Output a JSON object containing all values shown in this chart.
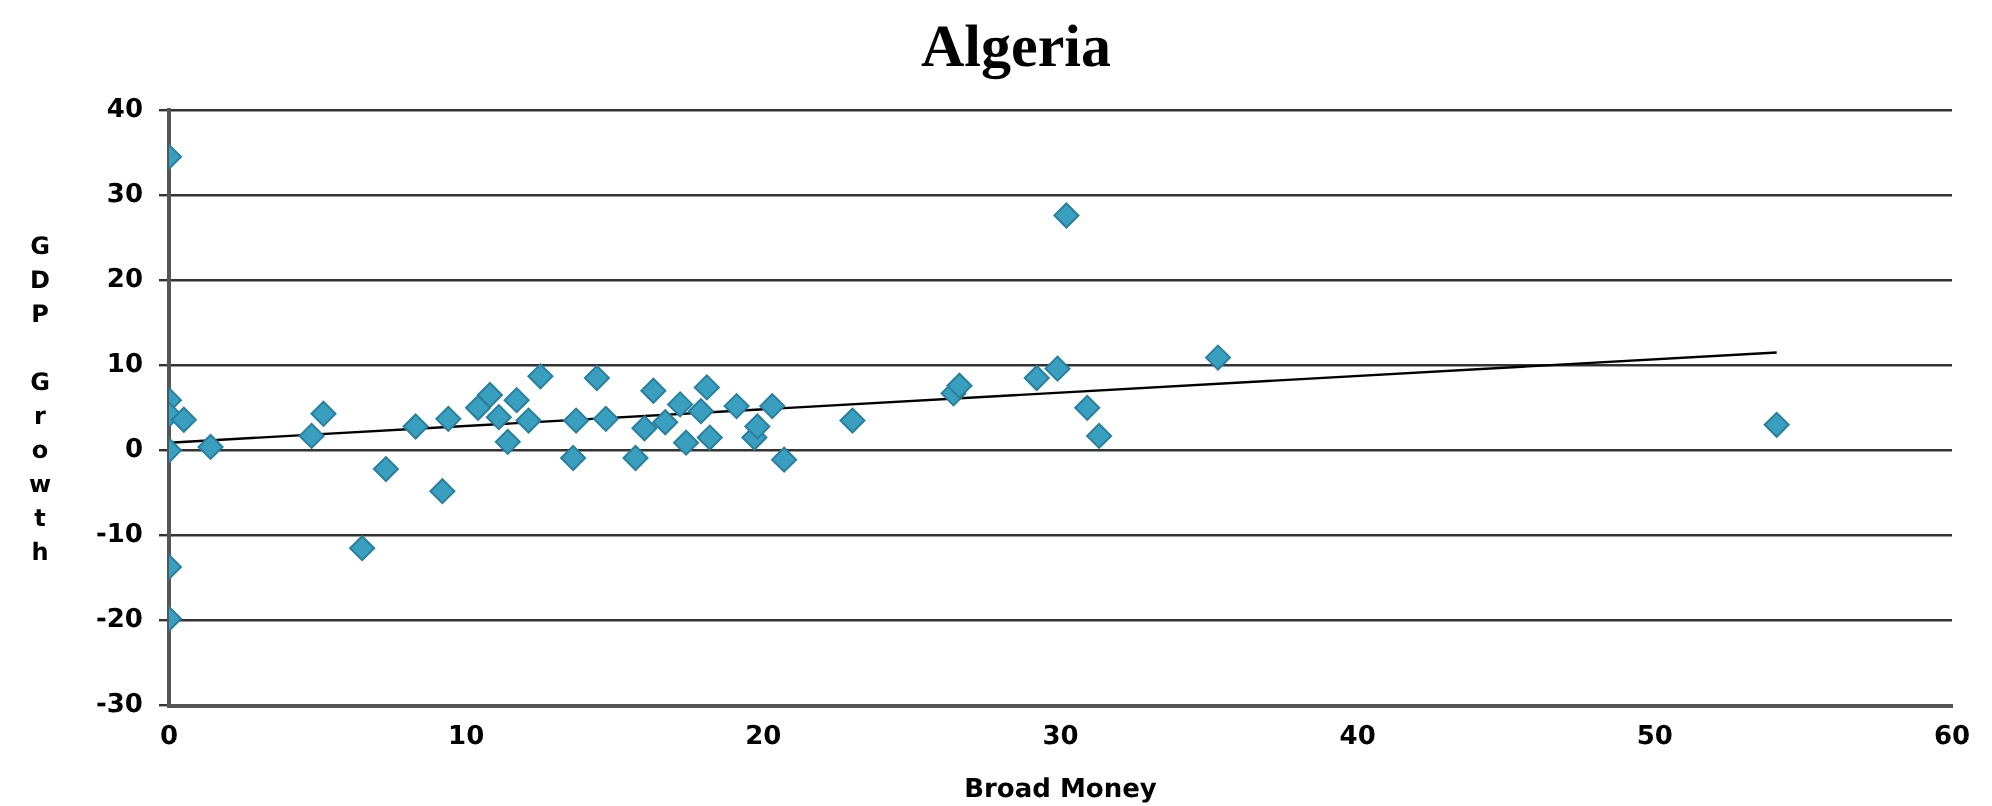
{
  "chart_data": {
    "type": "scatter",
    "title": "Algeria",
    "xlabel": "Broad Money",
    "ylabel": "GDP Growth",
    "marker": "diamond",
    "legend": false,
    "grid": "y",
    "xlim": [
      0,
      60
    ],
    "xticks": [
      0,
      10,
      20,
      30,
      40,
      50,
      60
    ],
    "ylim": [
      -30,
      40
    ],
    "yticks": [
      -30,
      -20,
      -10,
      0,
      10,
      20,
      30,
      40
    ],
    "series": [
      {
        "color": "#3a9fbf",
        "x": [
          0,
          0,
          0,
          0.5,
          0,
          0,
          0,
          1.4,
          4.8,
          5.2,
          7.3,
          6.5,
          8.3,
          9.2,
          9.4,
          10.4,
          10.8,
          11.1,
          11.4,
          11.7,
          12.1,
          12.5,
          13.6,
          13.7,
          14.4,
          14.7,
          15.7,
          16.0,
          16.3,
          16.7,
          17.2,
          17.4,
          17.9,
          18.1,
          18.2,
          19.1,
          19.7,
          19.8,
          20.3,
          20.7,
          23,
          26.4,
          26.6,
          29.2,
          29.9,
          30.2,
          30.9,
          31.3,
          35.3,
          54.1
        ],
        "values": [
          34.5,
          5.9,
          4.2,
          3.6,
          0,
          -13.7,
          -19.8,
          0.4,
          1.7,
          4.3,
          -2.2,
          -11.5,
          2.8,
          -4.8,
          3.7,
          5,
          6.5,
          3.9,
          1,
          5.9,
          3.5,
          8.7,
          -0.9,
          3.5,
          8.5,
          3.7,
          -0.9,
          2.6,
          7,
          3.3,
          5.4,
          0.9,
          4.6,
          7.4,
          1.5,
          5.2,
          1.5,
          2.8,
          5.2,
          -1.1,
          3.5,
          6.7,
          7.6,
          8.5,
          9.6,
          27.6,
          5,
          1.7,
          10.9,
          3
        ]
      },
      {
        "type": "line",
        "color": "#000000",
        "marker": "none",
        "x": [
          0,
          54.1
        ],
        "values": [
          0.9,
          11.5
        ]
      }
    ]
  }
}
